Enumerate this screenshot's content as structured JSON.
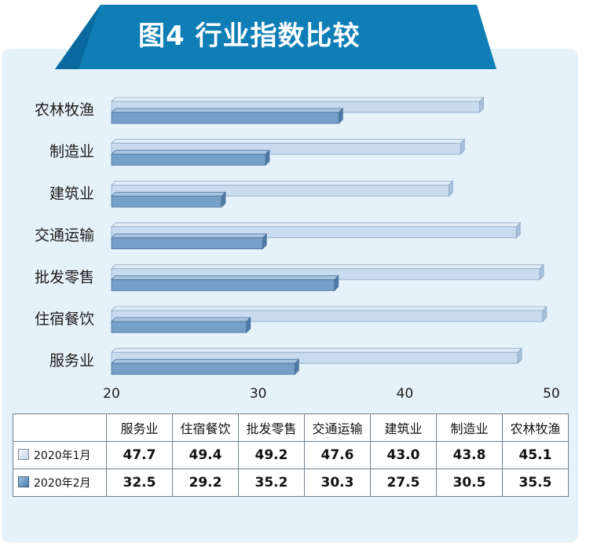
{
  "banner": {
    "title": "图4  行业指数比较"
  },
  "colors": {
    "banner": "#0f7eb7",
    "banner_dark": "#0a5a88",
    "jan_bar": "#c6d9ec",
    "feb_bar": "#6f9bc7",
    "panel": "#e6f2f9"
  },
  "chart_data": {
    "type": "bar",
    "orientation": "horizontal",
    "categories": [
      "服务业",
      "住宿餐饮",
      "批发零售",
      "交通运输",
      "建筑业",
      "制造业",
      "农林牧渔"
    ],
    "series": [
      {
        "name": "2020年1月",
        "values": [
          47.7,
          49.4,
          49.2,
          47.6,
          43.0,
          43.8,
          45.1
        ]
      },
      {
        "name": "2020年2月",
        "values": [
          32.5,
          29.2,
          35.2,
          30.3,
          27.5,
          30.5,
          35.5
        ]
      }
    ],
    "xlim": [
      20,
      50
    ],
    "xticks": [
      "20",
      "30",
      "40",
      "50"
    ],
    "title": "图4  行业指数比较",
    "legend": "table-below"
  },
  "table": {
    "headers": [
      "服务业",
      "住宿餐饮",
      "批发零售",
      "交通运输",
      "建筑业",
      "制造业",
      "农林牧渔"
    ],
    "rows": [
      {
        "label": "2020年1月",
        "values": [
          "47.7",
          "49.4",
          "49.2",
          "47.6",
          "43.0",
          "43.8",
          "45.1"
        ]
      },
      {
        "label": "2020年2月",
        "values": [
          "32.5",
          "29.2",
          "35.2",
          "30.3",
          "27.5",
          "30.5",
          "35.5"
        ]
      }
    ]
  }
}
